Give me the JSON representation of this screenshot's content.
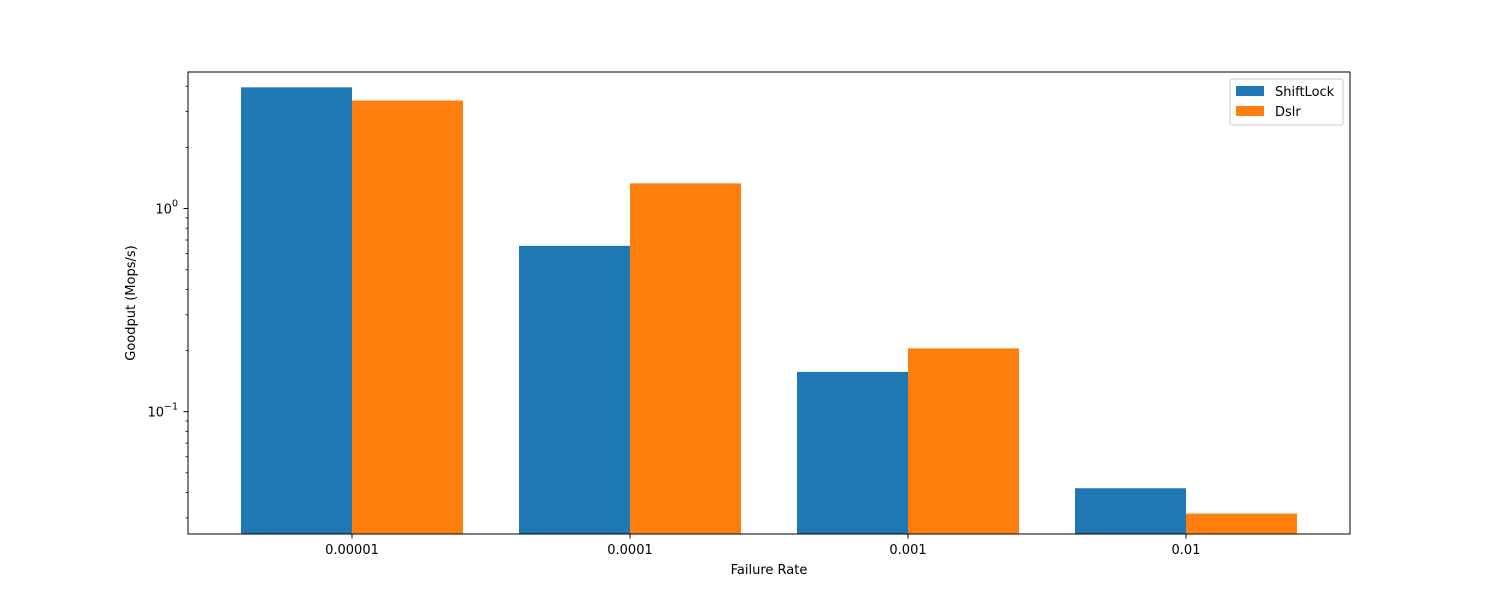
{
  "chart_data": {
    "type": "bar",
    "title": "",
    "xlabel": "Failure Rate",
    "ylabel": "Goodput (Mops/s)",
    "yscale": "log",
    "ylim": [
      0.025,
      4.7
    ],
    "y_major_ticks": [
      {
        "value": 1,
        "label": "10^0",
        "base": "10",
        "exp": "0"
      },
      {
        "value": 0.1,
        "label": "10^-1",
        "base": "10",
        "exp": "−1"
      }
    ],
    "categories": [
      "0.00001",
      "0.0001",
      "0.001",
      "0.01"
    ],
    "series": [
      {
        "name": "ShiftLock",
        "color": "#1f77b4",
        "values": [
          3.95,
          0.655,
          0.157,
          0.042
        ]
      },
      {
        "name": "Dslr",
        "color": "#ff7f0e",
        "values": [
          3.4,
          1.33,
          0.205,
          0.0315
        ]
      }
    ],
    "legend": "top-right",
    "grid": false
  }
}
